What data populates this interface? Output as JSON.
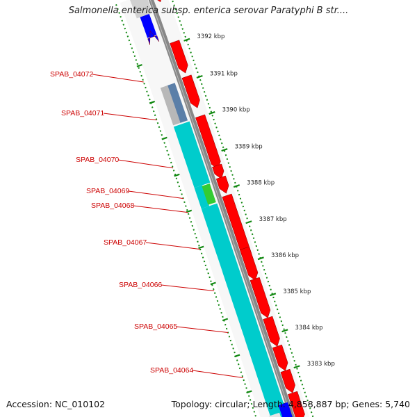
{
  "title": "Salmonella enterica subsp. enterica serovar Paratyphi B str....",
  "footer": {
    "accession": "Accession: NC_010102",
    "summary": "Topology: circular; Length: 4,858,887 bp; Genes: 5,740"
  },
  "scale": {
    "unit": "kbp",
    "ticks": [
      "3392 kbp",
      "3391 kbp",
      "3390 kbp",
      "3389 kbp",
      "3388 kbp",
      "3387 kbp",
      "3386 kbp",
      "3385 kbp",
      "3384 kbp",
      "3383 kbp"
    ]
  },
  "gene_labels": [
    "SPAB_04072",
    "SPAB_04071",
    "SPAB_04070",
    "SPAB_04069",
    "SPAB_04068",
    "SPAB_04067",
    "SPAB_04066",
    "SPAB_04065",
    "SPAB_04064"
  ],
  "colors": {
    "forward_gene": "#ff0000",
    "reverse_gene": "#0000ff",
    "cds_feature": "#00cccc",
    "rna_feature": "#33cc33",
    "pseudo_feature": "#5b7fa8",
    "backbone": "#888888",
    "label": "#cc0000",
    "scale_dots": "#118811"
  }
}
